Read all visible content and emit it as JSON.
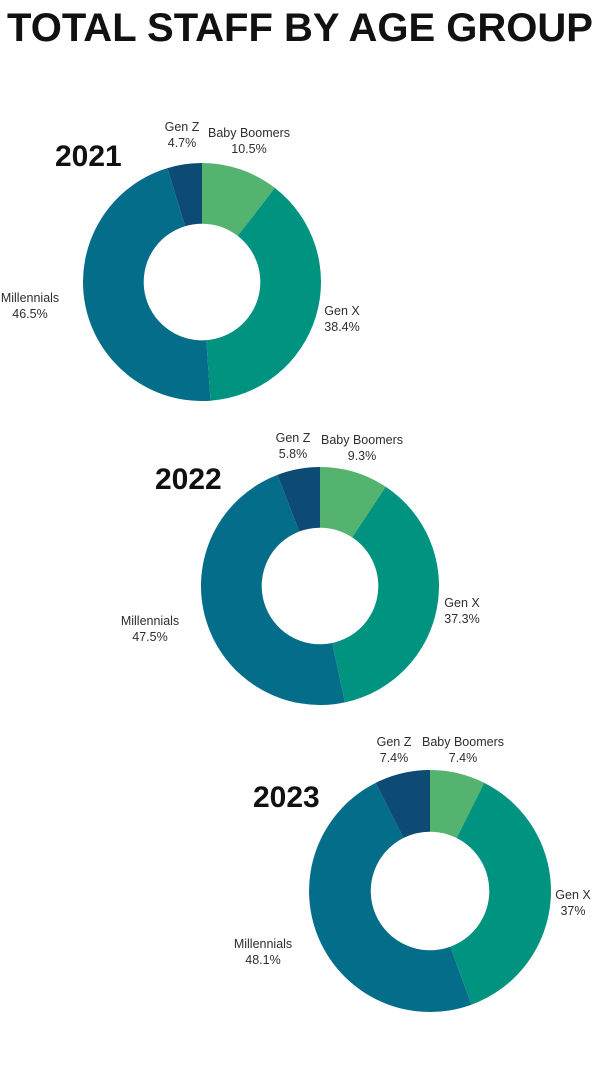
{
  "title": "TOTAL STAFF BY AGE GROUP",
  "palette": {
    "baby_boomers": "#54B46F",
    "gen_x": "#009480",
    "millennials": "#046D89",
    "gen_z": "#0D4B74"
  },
  "chart_data": {
    "type": "pie",
    "subtype": "donut",
    "start_angle": "top",
    "direction": "clockwise",
    "charts": [
      {
        "year": "2021",
        "slices": [
          {
            "label": "Baby Boomers",
            "pct": "10.5%",
            "value": 10.5,
            "color": "#54B46F"
          },
          {
            "label": "Gen X",
            "pct": "38.4%",
            "value": 38.4,
            "color": "#009480"
          },
          {
            "label": "Millennials",
            "pct": "46.5%",
            "value": 46.5,
            "color": "#046D89"
          },
          {
            "label": "Gen Z",
            "pct": "4.7%",
            "value": 4.7,
            "color": "#0D4B74"
          }
        ]
      },
      {
        "year": "2022",
        "slices": [
          {
            "label": "Baby Boomers",
            "pct": "9.3%",
            "value": 9.3,
            "color": "#54B46F"
          },
          {
            "label": "Gen X",
            "pct": "37.3%",
            "value": 37.3,
            "color": "#009480"
          },
          {
            "label": "Millennials",
            "pct": "47.5%",
            "value": 47.5,
            "color": "#046D89"
          },
          {
            "label": "Gen Z",
            "pct": "5.8%",
            "value": 5.8,
            "color": "#0D4B74"
          }
        ]
      },
      {
        "year": "2023",
        "slices": [
          {
            "label": "Baby Boomers",
            "pct": "7.4%",
            "value": 7.4,
            "color": "#54B46F"
          },
          {
            "label": "Gen X",
            "pct": "37%",
            "value": 37.0,
            "color": "#009480"
          },
          {
            "label": "Millennials",
            "pct": "48.1%",
            "value": 48.1,
            "color": "#046D89"
          },
          {
            "label": "Gen Z",
            "pct": "7.4%",
            "value": 7.4,
            "color": "#0D4B74"
          }
        ]
      }
    ]
  }
}
